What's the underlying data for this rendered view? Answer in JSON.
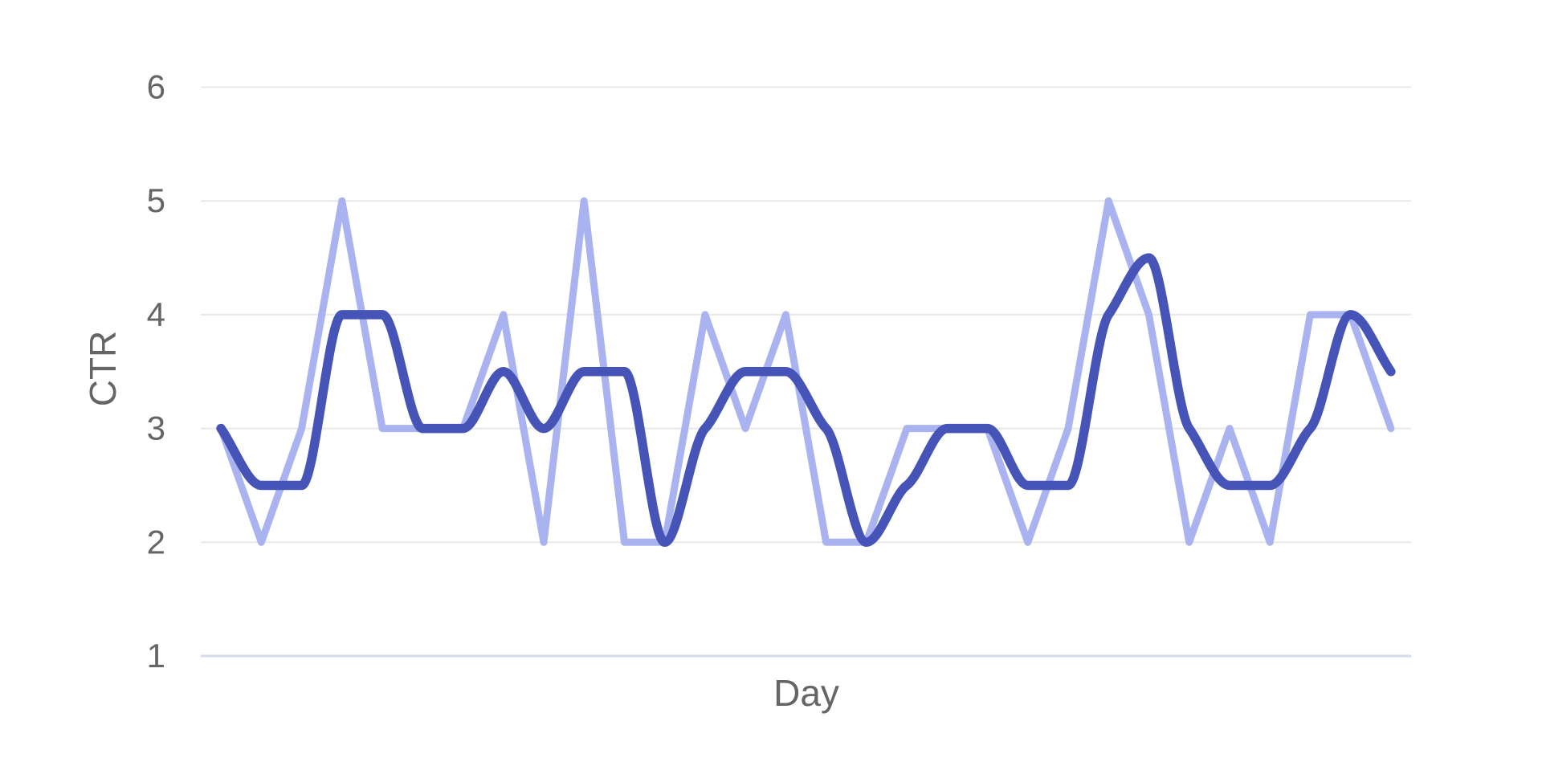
{
  "chart": {
    "y_axis_label": "CTR",
    "x_axis_label": "Day"
  },
  "chart_data": {
    "type": "line",
    "title": "",
    "xlabel": "Day",
    "ylabel": "CTR",
    "x": [
      1,
      2,
      3,
      4,
      5,
      6,
      7,
      8,
      9,
      10,
      11,
      12,
      13,
      14,
      15,
      16,
      17,
      18,
      19,
      20,
      21,
      22,
      23,
      24,
      25,
      26,
      27,
      28,
      29,
      30
    ],
    "series": [
      {
        "id": "daily-ctr-raw",
        "interpolation": "linear",
        "color": "#a9b3f0",
        "stroke_width": 9,
        "values": [
          3,
          2,
          3,
          5,
          3,
          3,
          3,
          4,
          2,
          5,
          2,
          2,
          4,
          3,
          4,
          2,
          2,
          3,
          3,
          3,
          2,
          3,
          5,
          4,
          2,
          3,
          2,
          4,
          4,
          3
        ]
      },
      {
        "id": "ctr-smoothed-moving-average",
        "interpolation": "monotone",
        "color": "#4654b7",
        "stroke_width": 11.5,
        "values": [
          3,
          2.5,
          2.5,
          4,
          4,
          3,
          3,
          3.5,
          3,
          3.5,
          3.5,
          2,
          3,
          3.5,
          3.5,
          3,
          2,
          2.5,
          3,
          3,
          2.5,
          2.5,
          4,
          4.5,
          3,
          2.5,
          2.5,
          3,
          4,
          3.5
        ]
      }
    ],
    "ylim": [
      1,
      6
    ],
    "y_ticks": [
      1,
      2,
      3,
      4,
      5,
      6
    ],
    "x_tick_labels_visible": false,
    "grid": true,
    "legend": false,
    "grid_color": "#e8e8e8",
    "baseline_color": "#d5dbec",
    "tick_label_color": "#636567",
    "axis_title_color": "#636567"
  }
}
